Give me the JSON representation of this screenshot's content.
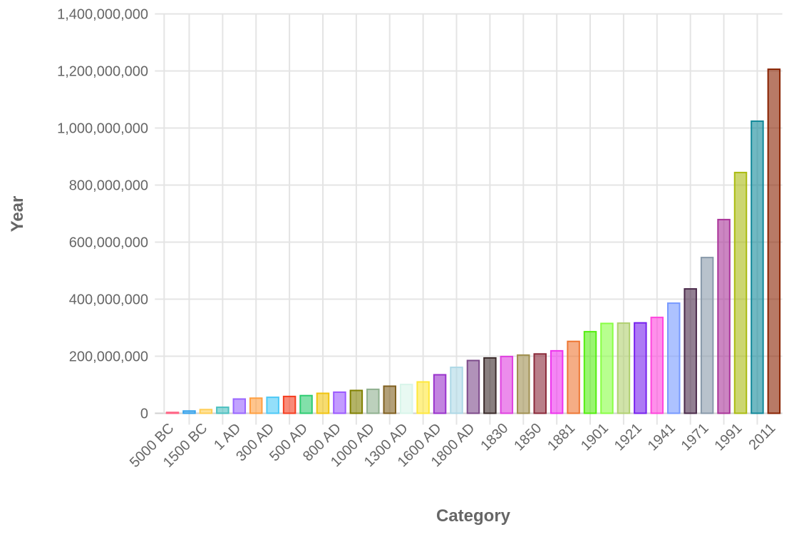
{
  "chart_data": {
    "type": "bar",
    "title": "",
    "xlabel": "Category",
    "ylabel": "Year",
    "ylim": [
      0,
      1400000000
    ],
    "yticks": [
      "0",
      "200,000,000",
      "400,000,000",
      "600,000,000",
      "800,000,000",
      "1,000,000,000",
      "1,200,000,000",
      "1,400,000,000"
    ],
    "grid": true,
    "legend": "none",
    "categories": [
      "5000 BC",
      "",
      "1500 BC",
      "",
      "1 AD",
      "",
      "300 AD",
      "",
      "500 AD",
      "",
      "800 AD",
      "",
      "1000 AD",
      "",
      "1300 AD",
      "",
      "1600 AD",
      "",
      "1800 AD",
      "",
      "1830",
      "",
      "1850",
      "",
      "1881",
      "",
      "1901",
      "",
      "1921",
      "",
      "1941",
      "",
      "1971",
      "",
      "1991",
      "",
      "2011"
    ],
    "values": [
      3000000,
      8000000,
      13000000,
      21000000,
      50000000,
      53000000,
      56000000,
      59000000,
      62000000,
      70000000,
      74000000,
      80000000,
      84000000,
      95000000,
      101000000,
      110000000,
      135000000,
      161000000,
      185000000,
      194000000,
      199000000,
      204000000,
      208000000,
      219000000,
      252000000,
      286000000,
      315000000,
      316000000,
      317000000,
      336000000,
      386000000,
      436000000,
      546000000,
      679000000,
      844000000,
      1024000000,
      1206000000
    ],
    "colors": [
      "#ff6384",
      "#36a2eb",
      "#ffce56",
      "#4bc0c0",
      "#9966ff",
      "#ff9f40",
      "#4dc9f6",
      "#f53d1f",
      "#2ecc71",
      "#f1c40f",
      "#9b59ff",
      "#808000",
      "#8fb08f",
      "#806020",
      "#d8f5ea",
      "#ffe83b",
      "#9932cc",
      "#add8e6",
      "#7d4a8a",
      "#3a2a2a",
      "#e040e0",
      "#a09050",
      "#8b2a3a",
      "#ee33ee",
      "#ee7733",
      "#55ee11",
      "#88ff44",
      "#b0d070",
      "#7722ee",
      "#ff44dd",
      "#7799ff",
      "#4a2a4a",
      "#8899aa",
      "#aa3399",
      "#aabb11",
      "#118899",
      "#882200"
    ]
  }
}
